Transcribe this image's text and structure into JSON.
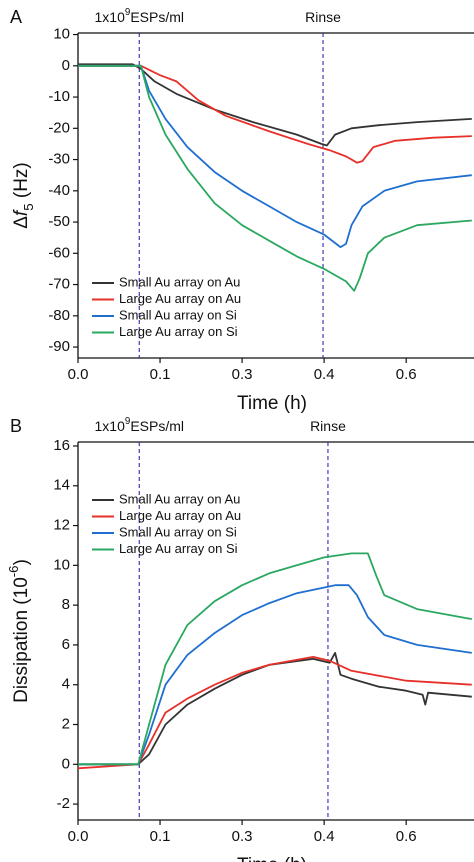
{
  "chart_data": [
    {
      "type": "line",
      "panel": "A",
      "ylabel": [
        {
          "text": "Δ"
        },
        {
          "text": "f",
          "style": "italic"
        },
        {
          "text": "5",
          "style": "sub"
        },
        {
          "text": " (Hz)"
        }
      ],
      "xlabel": "Time (h)",
      "xlim": [
        0,
        0.724
      ],
      "ylim": [
        -93.5,
        10.5
      ],
      "xticks": [
        {
          "value": 0,
          "label": "0.0"
        },
        {
          "value": 0.15,
          "label": "0.1"
        },
        {
          "value": 0.3,
          "label": "0.3"
        },
        {
          "value": 0.45,
          "label": "0.4"
        },
        {
          "value": 0.6,
          "label": "0.6"
        }
      ],
      "yticks": [
        10,
        0,
        -10,
        -20,
        -30,
        -40,
        -50,
        -60,
        -70,
        -80,
        -90
      ],
      "legend": "lower left",
      "vlines": [
        {
          "x": 0.112,
          "label": [
            {
              "text": "1x10"
            },
            {
              "text": "9",
              "style": "sup"
            },
            {
              "text": "ESPs/ml"
            }
          ]
        },
        {
          "x": 0.448,
          "label": [
            {
              "text": "Rinse"
            }
          ]
        }
      ],
      "series": [
        {
          "name": "Small Au array on Au",
          "color": "#333333",
          "x": [
            0,
            0.1,
            0.115,
            0.14,
            0.18,
            0.25,
            0.32,
            0.4,
            0.445,
            0.455,
            0.47,
            0.5,
            0.55,
            0.62,
            0.72
          ],
          "values": [
            0.5,
            0.5,
            -1,
            -5,
            -9,
            -14,
            -18,
            -22,
            -25,
            -25.5,
            -22,
            -20,
            -19,
            -18,
            -17
          ]
        },
        {
          "name": "Large Au array on Au",
          "color": "#e8302a",
          "x": [
            0,
            0.115,
            0.15,
            0.18,
            0.22,
            0.27,
            0.35,
            0.42,
            0.46,
            0.49,
            0.51,
            0.52,
            0.54,
            0.58,
            0.65,
            0.72
          ],
          "values": [
            0,
            0,
            -3,
            -5,
            -11,
            -16,
            -21,
            -25,
            -27,
            -29,
            -31,
            -30.5,
            -26,
            -24,
            -23,
            -22.5
          ]
        },
        {
          "name": "Small Au array on Si",
          "color": "#1f6fd0",
          "x": [
            0,
            0.115,
            0.13,
            0.16,
            0.2,
            0.25,
            0.3,
            0.35,
            0.4,
            0.45,
            0.48,
            0.49,
            0.5,
            0.52,
            0.56,
            0.62,
            0.72
          ],
          "values": [
            0,
            0,
            -8,
            -17,
            -26,
            -34,
            -40,
            -45,
            -50,
            -54,
            -58,
            -57,
            -51,
            -45,
            -40,
            -37,
            -35
          ]
        },
        {
          "name": "Large Au array on Si",
          "color": "#2aa860",
          "x": [
            0,
            0.115,
            0.13,
            0.16,
            0.2,
            0.25,
            0.3,
            0.35,
            0.4,
            0.45,
            0.49,
            0.505,
            0.515,
            0.53,
            0.56,
            0.62,
            0.72
          ],
          "values": [
            0,
            0,
            -10,
            -22,
            -33,
            -44,
            -51,
            -56,
            -61,
            -65,
            -69,
            -72,
            -68,
            -60,
            -55,
            -51,
            -49.5
          ]
        }
      ]
    },
    {
      "type": "line",
      "panel": "B",
      "ylabel": [
        {
          "text": "Dissipation (10"
        },
        {
          "text": "-6",
          "style": "sup"
        },
        {
          "text": ")"
        }
      ],
      "xlabel": "Time (h)",
      "xlim": [
        0,
        0.724
      ],
      "ylim": [
        -2.8,
        16.2
      ],
      "xticks": [
        {
          "value": 0,
          "label": "0.0"
        },
        {
          "value": 0.15,
          "label": "0.1"
        },
        {
          "value": 0.3,
          "label": "0.3"
        },
        {
          "value": 0.45,
          "label": "0.4"
        },
        {
          "value": 0.6,
          "label": "0.6"
        }
      ],
      "yticks": [
        16,
        14,
        12,
        10,
        8,
        6,
        4,
        2,
        0,
        -2
      ],
      "legend": "upper left",
      "vlines": [
        {
          "x": 0.112,
          "label": [
            {
              "text": "1x10"
            },
            {
              "text": "9",
              "style": "sup"
            },
            {
              "text": "ESPs/ml"
            }
          ]
        },
        {
          "x": 0.457,
          "label": [
            {
              "text": "Rinse"
            }
          ]
        }
      ],
      "series": [
        {
          "name": "Small Au array on Au",
          "color": "#333333",
          "x": [
            0,
            0.11,
            0.13,
            0.16,
            0.2,
            0.25,
            0.3,
            0.35,
            0.43,
            0.46,
            0.47,
            0.48,
            0.5,
            0.55,
            0.6,
            0.63,
            0.635,
            0.64,
            0.72
          ],
          "values": [
            0,
            0,
            0.5,
            2,
            3,
            3.8,
            4.5,
            5,
            5.3,
            5.1,
            5.6,
            4.5,
            4.3,
            3.9,
            3.7,
            3.5,
            3,
            3.6,
            3.4
          ]
        },
        {
          "name": "Large Au array on Au",
          "color": "#e8302a",
          "x": [
            0,
            0.11,
            0.13,
            0.16,
            0.2,
            0.25,
            0.3,
            0.35,
            0.43,
            0.46,
            0.5,
            0.6,
            0.72
          ],
          "values": [
            -0.2,
            0,
            1,
            2.6,
            3.3,
            4,
            4.6,
            5,
            5.4,
            5.2,
            4.7,
            4.2,
            4
          ]
        },
        {
          "name": "Small Au array on Si",
          "color": "#1f6fd0",
          "x": [
            0,
            0.11,
            0.13,
            0.16,
            0.2,
            0.25,
            0.3,
            0.35,
            0.4,
            0.47,
            0.495,
            0.51,
            0.53,
            0.56,
            0.62,
            0.72
          ],
          "values": [
            0,
            0,
            1.5,
            4,
            5.5,
            6.6,
            7.5,
            8.1,
            8.6,
            9,
            9,
            8.5,
            7.4,
            6.5,
            6,
            5.6
          ]
        },
        {
          "name": "Large Au array on Si",
          "color": "#2aa860",
          "x": [
            0,
            0.11,
            0.13,
            0.16,
            0.2,
            0.25,
            0.3,
            0.35,
            0.4,
            0.45,
            0.5,
            0.53,
            0.545,
            0.56,
            0.62,
            0.72
          ],
          "values": [
            0,
            0,
            2,
            5,
            7,
            8.2,
            9,
            9.6,
            10,
            10.4,
            10.6,
            10.6,
            9.5,
            8.5,
            7.8,
            7.3
          ]
        }
      ]
    }
  ]
}
